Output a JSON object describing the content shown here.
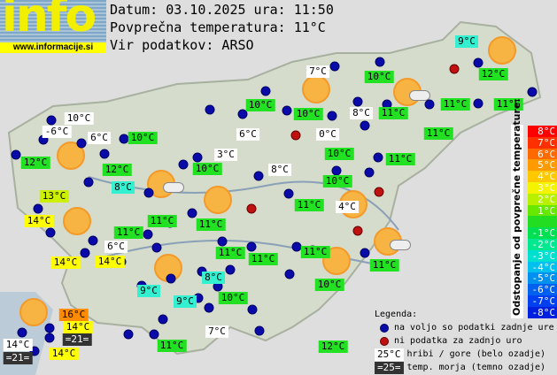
{
  "header": {
    "date_line": "Datum: 03.10.2025 ura: 11:50",
    "avg_line": "Povprečna temperatura: 11°C",
    "source_line": "Vir podatkov: ARSO"
  },
  "logo": {
    "text": "info",
    "url": "www.informacije.si"
  },
  "colors": {
    "white": "#ffffff",
    "green": "#22e022",
    "cyan": "#33f0d0",
    "yellowgreen": "#ccf000",
    "yellow": "#ffff00",
    "orange": "#ff8c00",
    "dark": "#333333"
  },
  "labels": [
    {
      "t": "9°C",
      "c": "cyan"
    },
    {
      "t": "12°C",
      "c": "green"
    },
    {
      "t": "7°C",
      "c": "white"
    },
    {
      "t": "10°C",
      "c": "green"
    },
    {
      "t": "11°C",
      "c": "green"
    },
    {
      "t": "11°C",
      "c": "green"
    },
    {
      "t": "10°C",
      "c": "green"
    },
    {
      "t": "10°C",
      "c": "green"
    },
    {
      "t": "8°C",
      "c": "white"
    },
    {
      "t": "11°C",
      "c": "green"
    },
    {
      "t": "11°C",
      "c": "green"
    },
    {
      "t": "10°C",
      "c": "white"
    },
    {
      "t": "-6°C",
      "c": "white"
    },
    {
      "t": "6°C",
      "c": "white"
    },
    {
      "t": "10°C",
      "c": "green"
    },
    {
      "t": "0°C",
      "c": "white"
    },
    {
      "t": "6°C",
      "c": "white"
    },
    {
      "t": "12°C",
      "c": "green"
    },
    {
      "t": "10°C",
      "c": "green"
    },
    {
      "t": "11°C",
      "c": "green"
    },
    {
      "t": "3°C",
      "c": "white"
    },
    {
      "t": "12°C",
      "c": "green"
    },
    {
      "t": "8°C",
      "c": "white"
    },
    {
      "t": "10°C",
      "c": "green"
    },
    {
      "t": "8°C",
      "c": "cyan"
    },
    {
      "t": "10°C",
      "c": "green"
    },
    {
      "t": "13°C",
      "c": "yellowgreen"
    },
    {
      "t": "11°C",
      "c": "green"
    },
    {
      "t": "4°C",
      "c": "white"
    },
    {
      "t": "14°C",
      "c": "yellow"
    },
    {
      "t": "11°C",
      "c": "green"
    },
    {
      "t": "11°C",
      "c": "green"
    },
    {
      "t": "11°C",
      "c": "green"
    },
    {
      "t": "6°C",
      "c": "white"
    },
    {
      "t": "14°C",
      "c": "yellow"
    },
    {
      "t": "14°C",
      "c": "yellow"
    },
    {
      "t": "11°C",
      "c": "green"
    },
    {
      "t": "11°C",
      "c": "green"
    },
    {
      "t": "11°C",
      "c": "green"
    },
    {
      "t": "11°C",
      "c": "green"
    },
    {
      "t": "8°C",
      "c": "cyan"
    },
    {
      "t": "9°C",
      "c": "cyan"
    },
    {
      "t": "10°C",
      "c": "green"
    },
    {
      "t": "9°C",
      "c": "cyan"
    },
    {
      "t": "10°C",
      "c": "green"
    },
    {
      "t": "16°C",
      "c": "orange"
    },
    {
      "t": "14°C",
      "c": "yellow"
    },
    {
      "t": "=21=",
      "c": "dark"
    },
    {
      "t": "7°C",
      "c": "white"
    },
    {
      "t": "14°C",
      "c": "white"
    },
    {
      "t": "=21=",
      "c": "dark"
    },
    {
      "t": "14°C",
      "c": "yellow"
    },
    {
      "t": "11°C",
      "c": "green"
    },
    {
      "t": "12°C",
      "c": "green"
    }
  ],
  "scale": {
    "title": "Odstopanje od povprečne temperature:",
    "steps": [
      {
        "t": "8°C",
        "c": "#ff0000"
      },
      {
        "t": "7°C",
        "c": "#ff3000"
      },
      {
        "t": "6°C",
        "c": "#ff6a00"
      },
      {
        "t": "5°C",
        "c": "#ff9a00"
      },
      {
        "t": "4°C",
        "c": "#ffc800"
      },
      {
        "t": "3°C",
        "c": "#f4f400"
      },
      {
        "t": "2°C",
        "c": "#b8f000"
      },
      {
        "t": "1°C",
        "c": "#66e800"
      },
      {
        "t": "",
        "c": "#22dd22"
      },
      {
        "t": "-1°C",
        "c": "#00e050"
      },
      {
        "t": "-2°C",
        "c": "#00e890"
      },
      {
        "t": "-3°C",
        "c": "#00e0d0"
      },
      {
        "t": "-4°C",
        "c": "#00c0f0"
      },
      {
        "t": "-5°C",
        "c": "#0090f0"
      },
      {
        "t": "-6°C",
        "c": "#0060f0"
      },
      {
        "t": "-7°C",
        "c": "#0040f0"
      },
      {
        "t": "-8°C",
        "c": "#0020e0"
      }
    ]
  },
  "legend": {
    "title": "Legenda:",
    "blue": "na voljo so podatki zadnje ure",
    "red": "ni podatka za zadnjo uro",
    "white_sample": "25°C",
    "white": "hribi / gore (belo ozadje)",
    "dark_sample": "=25=",
    "dark": "temp. morja (temno ozadje)"
  }
}
